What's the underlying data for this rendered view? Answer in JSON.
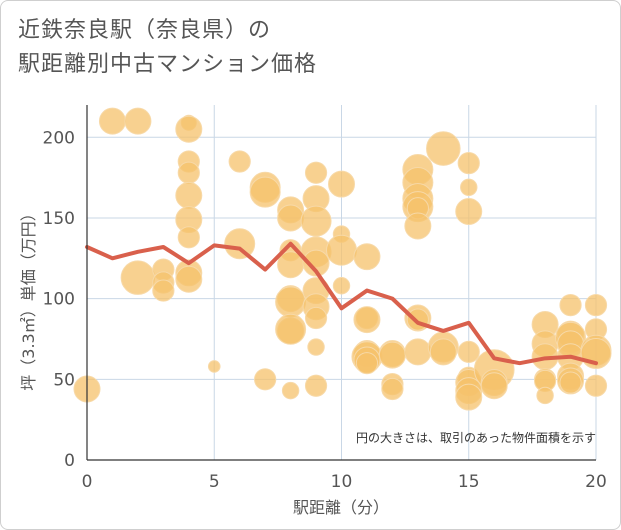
{
  "header": {
    "title_line1": "近鉄奈良駅（奈良県）の",
    "title_line2": "駅距離別中古マンション価格"
  },
  "chart_data": {
    "type": "scatter",
    "title": "近鉄奈良駅（奈良県）の駅距離別中古マンション価格",
    "xlabel": "駅距離（分）",
    "ylabel": "坪（3.3㎡）単価（万円）",
    "xlim": [
      0,
      20
    ],
    "ylim": [
      0,
      220
    ],
    "xticks": [
      0,
      5,
      10,
      15,
      20
    ],
    "yticks": [
      0,
      50,
      100,
      150,
      200
    ],
    "grid": true,
    "note": "円の大きさは、取引のあった物件面積を示す",
    "colors": {
      "bubble": "#f5c26b",
      "bubble_edge": "#f7d9a8",
      "line": "#d9604c",
      "grid": "#c9d7e6"
    },
    "series": [
      {
        "type": "bubble",
        "points": [
          [
            0,
            44,
            3
          ],
          [
            1,
            210,
            3
          ],
          [
            2,
            210,
            3
          ],
          [
            2,
            113,
            5
          ],
          [
            3,
            118,
            2
          ],
          [
            3,
            110,
            2
          ],
          [
            3,
            105,
            2
          ],
          [
            4,
            209,
            1
          ],
          [
            4,
            205,
            3
          ],
          [
            4,
            185,
            2
          ],
          [
            4,
            178,
            2
          ],
          [
            4,
            164,
            3
          ],
          [
            4,
            149,
            3
          ],
          [
            4,
            138,
            2
          ],
          [
            4,
            116,
            3
          ],
          [
            4,
            112,
            3
          ],
          [
            5,
            58,
            0.6
          ],
          [
            6,
            185,
            2
          ],
          [
            6,
            134,
            4
          ],
          [
            7,
            169,
            4
          ],
          [
            7,
            166,
            4
          ],
          [
            7,
            50,
            2
          ],
          [
            8,
            155,
            3
          ],
          [
            8,
            150,
            3
          ],
          [
            8,
            130,
            2
          ],
          [
            8,
            121,
            3
          ],
          [
            8,
            100,
            3
          ],
          [
            8,
            98,
            4
          ],
          [
            8,
            80,
            3
          ],
          [
            8,
            81,
            4
          ],
          [
            8,
            43,
            1.2
          ],
          [
            9,
            178,
            2
          ],
          [
            9,
            162,
            3
          ],
          [
            9,
            148,
            4
          ],
          [
            9,
            129,
            4
          ],
          [
            9,
            122,
            3
          ],
          [
            9,
            105,
            3
          ],
          [
            9,
            95,
            3
          ],
          [
            9,
            88,
            2
          ],
          [
            9,
            70,
            1.2
          ],
          [
            9,
            46,
            2
          ],
          [
            10,
            171,
            3
          ],
          [
            10,
            140,
            1.2
          ],
          [
            10,
            130,
            4
          ],
          [
            10,
            108,
            1.2
          ],
          [
            11,
            126,
            3
          ],
          [
            11,
            88,
            2
          ],
          [
            11,
            87,
            3
          ],
          [
            11,
            66,
            3
          ],
          [
            11,
            64,
            4
          ],
          [
            11,
            62,
            3
          ],
          [
            11,
            60,
            2
          ],
          [
            12,
            66,
            3
          ],
          [
            12,
            65,
            3
          ],
          [
            12,
            47,
            2
          ],
          [
            12,
            44,
            2
          ],
          [
            13,
            180,
            4
          ],
          [
            13,
            172,
            4
          ],
          [
            13,
            162,
            4
          ],
          [
            13,
            157,
            4
          ],
          [
            13,
            156,
            2
          ],
          [
            13,
            145,
            3
          ],
          [
            13,
            88,
            3
          ],
          [
            13,
            87,
            2
          ],
          [
            13,
            67,
            3
          ],
          [
            14,
            193,
            5
          ],
          [
            14,
            70,
            4
          ],
          [
            14,
            67,
            3
          ],
          [
            15,
            184,
            2
          ],
          [
            15,
            169,
            1.2
          ],
          [
            15,
            154,
            3
          ],
          [
            15,
            67,
            2
          ],
          [
            15,
            51,
            2
          ],
          [
            15,
            48,
            3
          ],
          [
            15,
            43,
            3
          ],
          [
            15,
            39,
            3
          ],
          [
            16,
            56,
            7
          ],
          [
            16,
            48,
            3
          ],
          [
            16,
            46,
            3
          ],
          [
            18,
            84,
            3
          ],
          [
            18,
            72,
            3
          ],
          [
            18,
            64,
            3
          ],
          [
            18,
            50,
            2
          ],
          [
            18,
            49,
            2
          ],
          [
            18,
            40,
            1.2
          ],
          [
            19,
            96,
            2
          ],
          [
            19,
            78,
            3
          ],
          [
            19,
            76,
            4
          ],
          [
            19,
            72,
            3
          ],
          [
            19,
            64,
            3
          ],
          [
            19,
            52,
            3
          ],
          [
            19,
            49,
            3
          ],
          [
            19,
            48,
            2
          ],
          [
            20,
            96,
            2
          ],
          [
            20,
            81,
            2
          ],
          [
            20,
            68,
            4
          ],
          [
            20,
            66,
            4
          ],
          [
            20,
            46,
            2
          ]
        ]
      },
      {
        "type": "line",
        "x": [
          0,
          1,
          2,
          3,
          4,
          5,
          6,
          7,
          8,
          9,
          10,
          11,
          12,
          13,
          14,
          15,
          16,
          17,
          18,
          19,
          20
        ],
        "y": [
          132,
          125,
          129,
          132,
          122,
          133,
          131,
          118,
          134,
          117,
          94,
          105,
          100,
          85,
          80,
          85,
          63,
          60,
          63,
          64,
          60
        ]
      }
    ]
  }
}
